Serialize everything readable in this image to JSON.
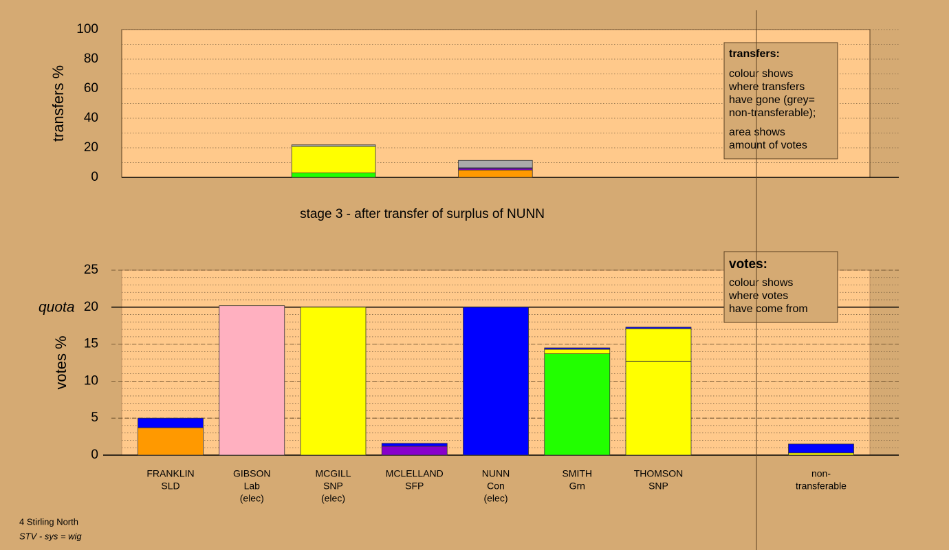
{
  "chart_data": [
    {
      "type": "stacked-bar",
      "title": "stage 3 - after transfer of surplus of NUNN",
      "y_label": "transfers %",
      "ylim": [
        0,
        100
      ],
      "yticks": [
        0,
        20,
        40,
        60,
        80,
        100
      ],
      "minor_step": 10,
      "bars": [
        {
          "x": [
            1.49,
            2.52
          ],
          "segments": [
            {
              "color": "#22ff00",
              "value": 3
            },
            {
              "color": "#ffff00",
              "value": 18
            },
            {
              "color": "#aaaaaa",
              "value": 1
            }
          ]
        },
        {
          "x": [
            3.54,
            4.45
          ],
          "segments": [
            {
              "color": "#ff9900",
              "value": 5
            },
            {
              "color": "#8800cc",
              "value": 1
            },
            {
              "color": "#0000ff",
              "value": 0.5
            },
            {
              "color": "#aaaaaa",
              "value": 5
            }
          ]
        }
      ],
      "legend": {
        "title": "transfers:",
        "paragraphs": [
          [
            "colour shows",
            "where transfers",
            "have gone (grey=",
            "non-transferable);"
          ],
          [
            "area shows",
            "amount of votes"
          ]
        ]
      }
    },
    {
      "type": "stacked-bar",
      "y_label": "votes %",
      "ylim": [
        0,
        25
      ],
      "yticks": [
        0,
        5,
        10,
        15,
        20,
        25
      ],
      "minor_step": 1,
      "quota": {
        "value": 20,
        "label": "quota"
      },
      "categories": [
        [
          "FRANKLIN",
          "SLD"
        ],
        [
          "GIBSON",
          "Lab",
          "(elec)"
        ],
        [
          "MCGILL",
          "SNP",
          "(elec)"
        ],
        [
          "MCLELLAND",
          "SFP"
        ],
        [
          "NUNN",
          "Con",
          "(elec)"
        ],
        [
          "SMITH",
          "Grn"
        ],
        [
          "THOMSON",
          "SNP"
        ],
        null,
        [
          "non-",
          "transferable"
        ]
      ],
      "bars": [
        {
          "segments": [
            {
              "color": "#ff9900",
              "value": 3.7
            },
            {
              "color": "#0000ff",
              "value": 1.3
            }
          ]
        },
        {
          "segments": [
            {
              "color": "#ffb0c0",
              "value": 20.2
            }
          ]
        },
        {
          "segments": [
            {
              "color": "#ffff00",
              "value": 20
            }
          ]
        },
        {
          "segments": [
            {
              "color": "#8800cc",
              "value": 1.2
            },
            {
              "color": "#0000ff",
              "value": 0.4
            }
          ]
        },
        {
          "segments": [
            {
              "color": "#0000ff",
              "value": 20
            }
          ]
        },
        {
          "segments": [
            {
              "color": "#22ff00",
              "value": 13.7
            },
            {
              "color": "#ffff00",
              "value": 0.6
            },
            {
              "color": "#0000ff",
              "value": 0.2
            }
          ]
        },
        {
          "segments": [
            {
              "color": "#ffff00",
              "value": 12.7
            },
            {
              "color": "#ffff00",
              "value": 4.4
            },
            {
              "color": "#0000ff",
              "value": 0.2
            }
          ]
        },
        null,
        {
          "segments": [
            {
              "color": "#ffff00",
              "value": 0.3
            },
            {
              "color": "#0000ff",
              "value": 1.2
            }
          ]
        }
      ],
      "legend": {
        "title": "votes:",
        "paragraphs": [
          [
            "colour shows",
            "where votes",
            "have come from"
          ]
        ]
      }
    }
  ],
  "footer": {
    "constituency": "4 Stirling North",
    "system": "STV - sys = wig"
  }
}
